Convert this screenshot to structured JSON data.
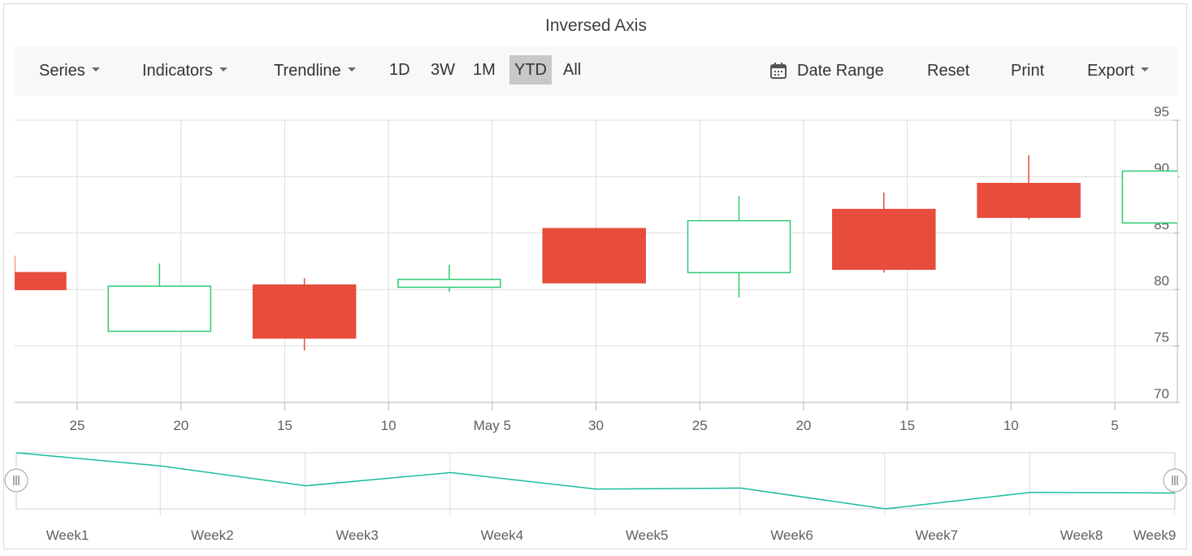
{
  "title": "Inversed Axis",
  "toolbar": {
    "series_label": "Series",
    "indicators_label": "Indicators",
    "trendline_label": "Trendline",
    "periods": [
      {
        "label": "1D",
        "active": false
      },
      {
        "label": "3W",
        "active": false
      },
      {
        "label": "1M",
        "active": false
      },
      {
        "label": "YTD",
        "active": true
      },
      {
        "label": "All",
        "active": false
      }
    ],
    "date_range_label": "Date Range",
    "reset_label": "Reset",
    "print_label": "Print",
    "export_label": "Export",
    "calendar_icon": "calendar-icon"
  },
  "colors": {
    "bearish": "#e74c3c",
    "bullish": "#2ecc71",
    "navigator_line": "#1abc9c",
    "grid": "#dddddd",
    "active_period_bg": "#c8c8c8"
  },
  "chart_data": {
    "type": "candlestick",
    "x_axis_inversed": true,
    "y_axis_position": "right",
    "ylim": [
      70,
      95
    ],
    "yticks": [
      "70",
      "75",
      "80",
      "85",
      "90",
      "95"
    ],
    "xticks": [
      "25",
      "20",
      "15",
      "10",
      "May 5",
      "30",
      "25",
      "20",
      "15",
      "10",
      "5"
    ],
    "candles": [
      {
        "open": 80.0,
        "close": 81.5,
        "high": 83.0,
        "low": 80.0,
        "direction": "bearish"
      },
      {
        "open": 76.3,
        "close": 80.3,
        "high": 82.3,
        "low": 76.3,
        "direction": "bullish"
      },
      {
        "open": 75.7,
        "close": 80.4,
        "high": 81.0,
        "low": 74.6,
        "direction": "bearish"
      },
      {
        "open": 80.2,
        "close": 80.9,
        "high": 82.2,
        "low": 79.8,
        "direction": "bullish"
      },
      {
        "open": 80.6,
        "close": 85.4,
        "high": 85.4,
        "low": 80.6,
        "direction": "bearish"
      },
      {
        "open": 81.5,
        "close": 86.1,
        "high": 88.3,
        "low": 79.3,
        "direction": "bullish"
      },
      {
        "open": 81.8,
        "close": 87.1,
        "high": 88.6,
        "low": 81.5,
        "direction": "bearish"
      },
      {
        "open": 86.4,
        "close": 89.4,
        "high": 91.9,
        "low": 86.2,
        "direction": "bearish"
      },
      {
        "open": 85.9,
        "close": 90.5,
        "high": 90.5,
        "low": 85.9,
        "direction": "bullish"
      }
    ],
    "navigator": {
      "categories": [
        "Week1",
        "Week2",
        "Week3",
        "Week4",
        "Week5",
        "Week6",
        "Week7",
        "Week8",
        "Week9"
      ],
      "values": [
        88.0,
        84.0,
        78.0,
        82.0,
        77.0,
        77.3,
        71.0,
        76.0,
        75.8
      ]
    }
  }
}
